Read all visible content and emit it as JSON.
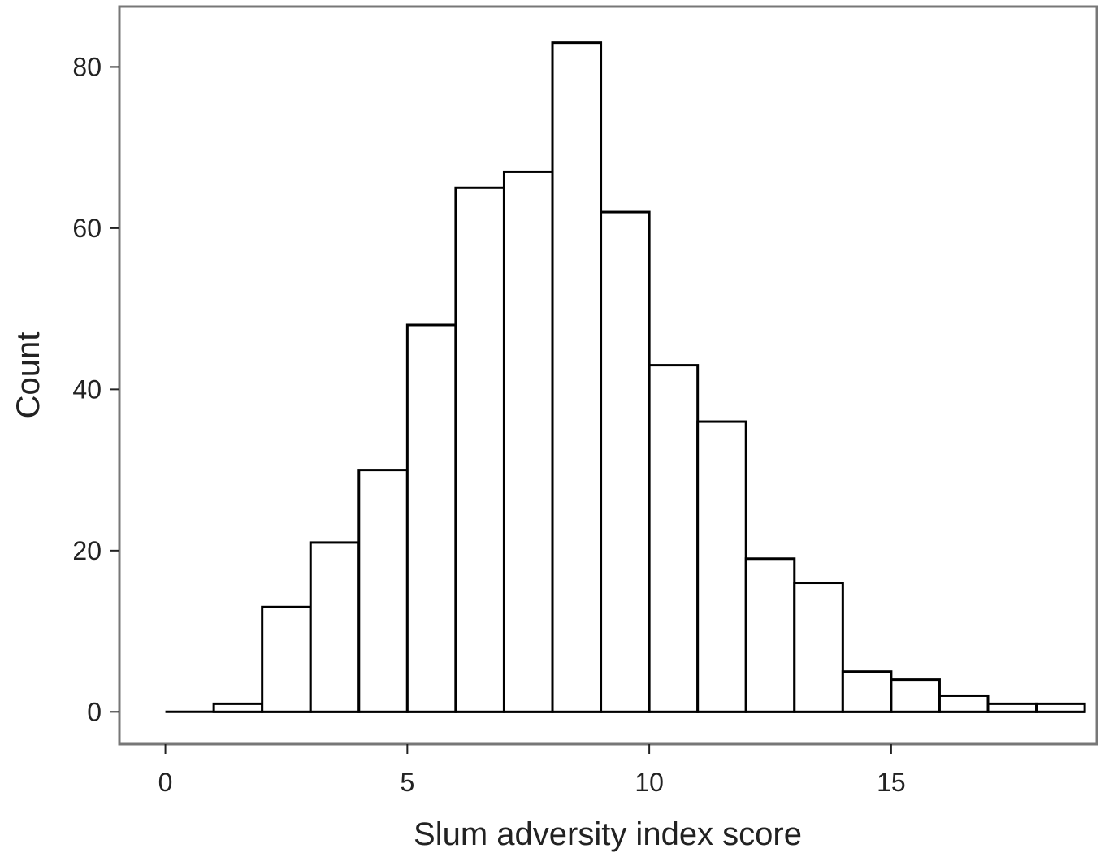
{
  "chart_data": {
    "type": "bar",
    "subtype": "histogram",
    "bin_width": 1,
    "bins": [
      {
        "x0": 0,
        "x1": 1,
        "count": 0
      },
      {
        "x0": 1,
        "x1": 2,
        "count": 1
      },
      {
        "x0": 2,
        "x1": 3,
        "count": 13
      },
      {
        "x0": 3,
        "x1": 4,
        "count": 21
      },
      {
        "x0": 4,
        "x1": 5,
        "count": 30
      },
      {
        "x0": 5,
        "x1": 6,
        "count": 48
      },
      {
        "x0": 6,
        "x1": 7,
        "count": 65
      },
      {
        "x0": 7,
        "x1": 8,
        "count": 67
      },
      {
        "x0": 8,
        "x1": 9,
        "count": 83
      },
      {
        "x0": 9,
        "x1": 10,
        "count": 62
      },
      {
        "x0": 10,
        "x1": 11,
        "count": 43
      },
      {
        "x0": 11,
        "x1": 12,
        "count": 36
      },
      {
        "x0": 12,
        "x1": 13,
        "count": 19
      },
      {
        "x0": 13,
        "x1": 14,
        "count": 16
      },
      {
        "x0": 14,
        "x1": 15,
        "count": 5
      },
      {
        "x0": 15,
        "x1": 16,
        "count": 4
      },
      {
        "x0": 16,
        "x1": 17,
        "count": 2
      },
      {
        "x0": 17,
        "x1": 18,
        "count": 1
      },
      {
        "x0": 18,
        "x1": 19,
        "count": 1
      }
    ],
    "xlabel": "Slum adversity index score",
    "ylabel": "Count",
    "xticks": [
      0,
      5,
      10,
      15
    ],
    "yticks": [
      0,
      20,
      40,
      60,
      80
    ],
    "xlim": [
      -0.95,
      19.25
    ],
    "ylim": [
      -4,
      87.5
    ],
    "grid": false,
    "legend": "none",
    "bar_fill": "#ffffff",
    "bar_stroke": "#000000",
    "panel_border_color": "#777777"
  }
}
